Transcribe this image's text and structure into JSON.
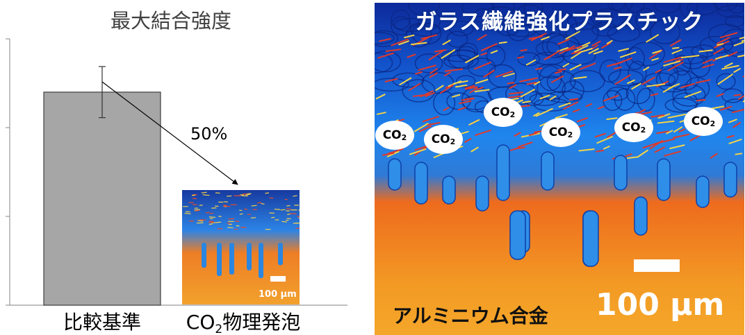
{
  "chart_data": {
    "type": "bar",
    "title": "最大結合強度",
    "categories": [
      "比較基準",
      "CO₂物理発泡"
    ],
    "values": [
      100,
      50
    ],
    "error": [
      12,
      3
    ],
    "ylim": [
      0,
      125
    ],
    "grid": false,
    "annotation": "50%",
    "inset_scale_label": "100 μm",
    "bar_colors": [
      "#a6a6a6",
      "#e9731f"
    ]
  },
  "micrograph": {
    "title": "ガラス繊維強化プラスチック",
    "alloy_label": "アルミニウム合金",
    "scale_label": "100 μm",
    "bubble_text": "CO",
    "bubble_subscript": "2",
    "colors": {
      "top": "#0d2fa3",
      "mid": "#1677e8",
      "bottom": "#f08a1c"
    }
  }
}
